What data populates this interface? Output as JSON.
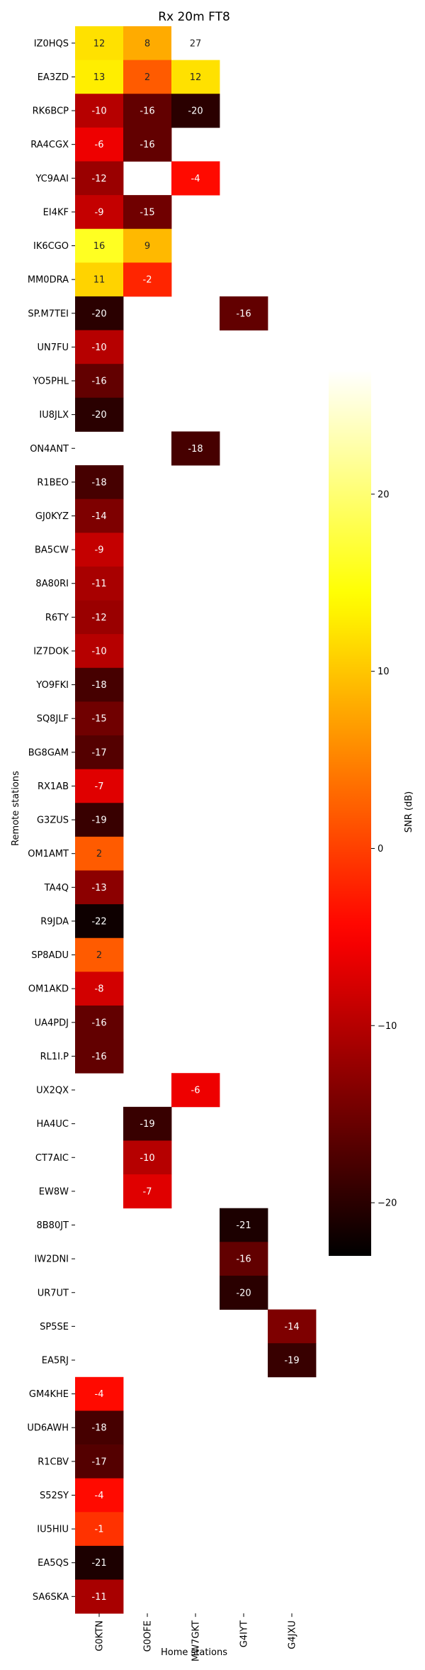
{
  "chart_data": {
    "type": "heatmap",
    "title": "Rx 20m FT8",
    "xlabel": "Home stations",
    "ylabel": "Remote stations",
    "colorbar_label": "SNR (dB)",
    "colormap": "hot",
    "vmin": -23,
    "vmax": 27,
    "colorbar_ticks": [
      20,
      10,
      0,
      -10,
      -20
    ],
    "columns": [
      "G0KTN",
      "G0OFE",
      "MW7GKT",
      "G4IYT",
      "G4JXU"
    ],
    "rows": [
      "IZ0HQS",
      "EA3ZD",
      "RK6BCP",
      "RA4CGX",
      "YC9AAI",
      "EI4KF",
      "IK6CGO",
      "MM0DRA",
      "SP.M7TEI",
      "UN7FU",
      "YO5PHL",
      "IU8JLX",
      "ON4ANT",
      "R1BEO",
      "GJ0KYZ",
      "BA5CW",
      "8A80RI",
      "R6TY",
      "IZ7DOK",
      "YO9FKI",
      "SQ8JLF",
      "BG8GAM",
      "RX1AB",
      "G3ZUS",
      "OM1AMT",
      "TA4Q",
      "R9JDA",
      "SP8ADU",
      "OM1AKD",
      "UA4PDJ",
      "RL1I.P",
      "UX2QX",
      "HA4UC",
      "CT7AIC",
      "EW8W",
      "8B80JT",
      "IW2DNI",
      "UR7UT",
      "SP5SE",
      "EA5RJ",
      "GM4KHE",
      "UD6AWH",
      "R1CBV",
      "S52SY",
      "IU5HIU",
      "EA5QS",
      "SA6SKA"
    ],
    "values": [
      [
        12,
        8,
        27,
        null,
        null
      ],
      [
        13,
        2,
        12,
        null,
        null
      ],
      [
        -10,
        -16,
        -20,
        null,
        null
      ],
      [
        -6,
        -16,
        null,
        null,
        null
      ],
      [
        -12,
        null,
        -4,
        null,
        null
      ],
      [
        -9,
        -15,
        null,
        null,
        null
      ],
      [
        16,
        9,
        null,
        null,
        null
      ],
      [
        11,
        -2,
        null,
        null,
        null
      ],
      [
        -20,
        null,
        null,
        -16,
        null
      ],
      [
        -10,
        null,
        null,
        null,
        null
      ],
      [
        -16,
        null,
        null,
        null,
        null
      ],
      [
        -20,
        null,
        null,
        null,
        null
      ],
      [
        null,
        null,
        -18,
        null,
        null
      ],
      [
        -18,
        null,
        null,
        null,
        null
      ],
      [
        -14,
        null,
        null,
        null,
        null
      ],
      [
        -9,
        null,
        null,
        null,
        null
      ],
      [
        -11,
        null,
        null,
        null,
        null
      ],
      [
        -12,
        null,
        null,
        null,
        null
      ],
      [
        -10,
        null,
        null,
        null,
        null
      ],
      [
        -18,
        null,
        null,
        null,
        null
      ],
      [
        -15,
        null,
        null,
        null,
        null
      ],
      [
        -17,
        null,
        null,
        null,
        null
      ],
      [
        -7,
        null,
        null,
        null,
        null
      ],
      [
        -19,
        null,
        null,
        null,
        null
      ],
      [
        2,
        null,
        null,
        null,
        null
      ],
      [
        -13,
        null,
        null,
        null,
        null
      ],
      [
        -22,
        null,
        null,
        null,
        null
      ],
      [
        2,
        null,
        null,
        null,
        null
      ],
      [
        -8,
        null,
        null,
        null,
        null
      ],
      [
        -16,
        null,
        null,
        null,
        null
      ],
      [
        -16,
        null,
        null,
        null,
        null
      ],
      [
        null,
        null,
        -6,
        null,
        null
      ],
      [
        null,
        -19,
        null,
        null,
        null
      ],
      [
        null,
        -10,
        null,
        null,
        null
      ],
      [
        null,
        -7,
        null,
        null,
        null
      ],
      [
        null,
        null,
        null,
        -21,
        null
      ],
      [
        null,
        null,
        null,
        -16,
        null
      ],
      [
        null,
        null,
        null,
        -20,
        null
      ],
      [
        null,
        null,
        null,
        null,
        -14
      ],
      [
        null,
        null,
        null,
        null,
        -19
      ],
      [
        -4,
        null,
        null,
        null,
        null
      ],
      [
        -18,
        null,
        null,
        null,
        null
      ],
      [
        -17,
        null,
        null,
        null,
        null
      ],
      [
        -4,
        null,
        null,
        null,
        null
      ],
      [
        -1,
        null,
        null,
        null,
        null
      ],
      [
        -21,
        null,
        null,
        null,
        null
      ],
      [
        -11,
        null,
        null,
        null,
        null
      ]
    ]
  }
}
